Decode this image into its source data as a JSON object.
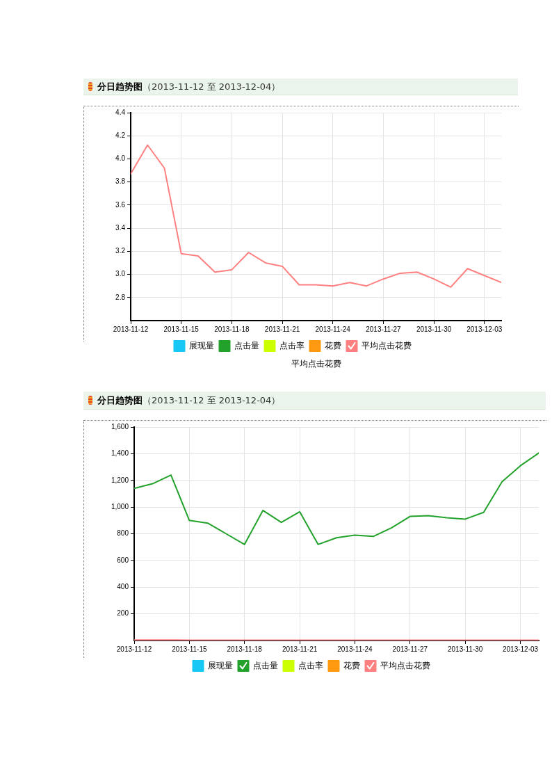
{
  "chart_data": [
    {
      "type": "line",
      "title": "分日趋势图",
      "subtitle": "（2013-11-12 至 2013-12-04）",
      "x": [
        "2013-11-12",
        "2013-11-13",
        "2013-11-14",
        "2013-11-15",
        "2013-11-16",
        "2013-11-17",
        "2013-11-18",
        "2013-11-19",
        "2013-11-20",
        "2013-11-21",
        "2013-11-22",
        "2013-11-23",
        "2013-11-24",
        "2013-11-25",
        "2013-11-26",
        "2013-11-27",
        "2013-11-28",
        "2013-11-29",
        "2013-11-30",
        "2013-12-01",
        "2013-12-02",
        "2013-12-03",
        "2013-12-04"
      ],
      "series": [
        {
          "name": "展现量",
          "color": "#17c8f5",
          "values": [
            null,
            null,
            null,
            null,
            null,
            null,
            null,
            null,
            null,
            null,
            null,
            null,
            null,
            null,
            null,
            null,
            null,
            null,
            null,
            null,
            null,
            null,
            null
          ]
        },
        {
          "name": "点击量",
          "color": "#22a22a",
          "values": [
            null,
            null,
            null,
            null,
            null,
            null,
            null,
            null,
            null,
            null,
            null,
            null,
            null,
            null,
            null,
            null,
            null,
            null,
            null,
            null,
            null,
            null,
            null
          ]
        },
        {
          "name": "点击率",
          "color": "#ccff00",
          "values": [
            null,
            null,
            null,
            null,
            null,
            null,
            null,
            null,
            null,
            null,
            null,
            null,
            null,
            null,
            null,
            null,
            null,
            null,
            null,
            null,
            null,
            null,
            null
          ]
        },
        {
          "name": "花费",
          "color": "#ff9910",
          "values": [
            null,
            null,
            null,
            null,
            null,
            null,
            null,
            null,
            null,
            null,
            null,
            null,
            null,
            null,
            null,
            null,
            null,
            null,
            null,
            null,
            null,
            null,
            null
          ]
        },
        {
          "name": "平均点击花费",
          "color": "#ff8080",
          "values": [
            3.87,
            4.12,
            3.92,
            3.18,
            3.16,
            3.02,
            3.04,
            3.19,
            3.1,
            3.07,
            2.91,
            2.91,
            2.9,
            2.93,
            2.9,
            2.96,
            3.01,
            3.02,
            2.96,
            2.89,
            3.05,
            2.99,
            2.93
          ]
        }
      ],
      "xlim": [
        "2013-11-12",
        "2013-12-04"
      ],
      "xticks": [
        "2013-11-12",
        "2013-11-15",
        "2013-11-18",
        "2013-11-21",
        "2013-11-24",
        "2013-11-27",
        "2013-11-30",
        "2013-12-03"
      ],
      "ylim": [
        2.6,
        4.4
      ],
      "yticks": [
        2.8,
        {
          "value": 3,
          "label": "3.0"
        },
        3.2,
        3.4,
        3.6,
        3.8,
        {
          "value": 4,
          "label": "4.0"
        },
        4.2,
        4.4
      ],
      "grid": true,
      "legend": "bottom",
      "marker": "none",
      "line_style": "solid",
      "annotations": [
        "平均点击花费"
      ]
    },
    {
      "type": "line",
      "title": "分日趋势图",
      "subtitle": "（2013-11-12 至 2013-12-04）",
      "x": [
        "2013-11-12",
        "2013-11-13",
        "2013-11-14",
        "2013-11-15",
        "2013-11-16",
        "2013-11-17",
        "2013-11-18",
        "2013-11-19",
        "2013-11-20",
        "2013-11-21",
        "2013-11-22",
        "2013-11-23",
        "2013-11-24",
        "2013-11-25",
        "2013-11-26",
        "2013-11-27",
        "2013-11-28",
        "2013-11-29",
        "2013-11-30",
        "2013-12-01",
        "2013-12-02",
        "2013-12-03",
        "2013-12-04"
      ],
      "series": [
        {
          "name": "展现量",
          "color": "#17c8f5",
          "values": [
            null,
            null,
            null,
            null,
            null,
            null,
            null,
            null,
            null,
            null,
            null,
            null,
            null,
            null,
            null,
            null,
            null,
            null,
            null,
            null,
            null,
            null,
            null
          ]
        },
        {
          "name": "点击量",
          "color": "#22a22a",
          "values": [
            1140,
            1175,
            1240,
            900,
            880,
            800,
            720,
            975,
            885,
            965,
            720,
            770,
            790,
            780,
            845,
            930,
            935,
            920,
            910,
            960,
            1190,
            1310,
            1405
          ]
        },
        {
          "name": "点击率",
          "color": "#ccff00",
          "values": [
            null,
            null,
            null,
            null,
            null,
            null,
            null,
            null,
            null,
            null,
            null,
            null,
            null,
            null,
            null,
            null,
            null,
            null,
            null,
            null,
            null,
            null,
            null
          ]
        },
        {
          "name": "花费",
          "color": "#ff9910",
          "values": [
            null,
            null,
            null,
            null,
            null,
            null,
            null,
            null,
            null,
            null,
            null,
            null,
            null,
            null,
            null,
            null,
            null,
            null,
            null,
            null,
            null,
            null,
            null
          ]
        },
        {
          "name": "平均点击花费",
          "color": "#ff8080",
          "values": [
            3.87,
            4.12,
            3.92,
            3.18,
            3.16,
            3.02,
            3.04,
            3.19,
            3.1,
            3.07,
            2.91,
            2.91,
            2.9,
            2.93,
            2.9,
            2.96,
            3.01,
            3.02,
            2.96,
            2.89,
            3.05,
            2.99,
            2.93
          ]
        }
      ],
      "xlim": [
        "2013-11-12",
        "2013-12-04"
      ],
      "xticks": [
        "2013-11-12",
        "2013-11-15",
        "2013-11-18",
        "2013-11-21",
        "2013-11-24",
        "2013-11-27",
        "2013-11-30",
        "2013-12-03"
      ],
      "ylim": [
        0,
        1600
      ],
      "yticks": [
        200,
        400,
        600,
        800,
        {
          "value": 1000,
          "label": "1,000"
        },
        {
          "value": 1200,
          "label": "1,200"
        },
        {
          "value": 1400,
          "label": "1,400"
        },
        {
          "value": 1600,
          "label": "1,600"
        }
      ],
      "grid": true,
      "legend": "bottom",
      "marker": "none",
      "line_style": "solid"
    }
  ]
}
